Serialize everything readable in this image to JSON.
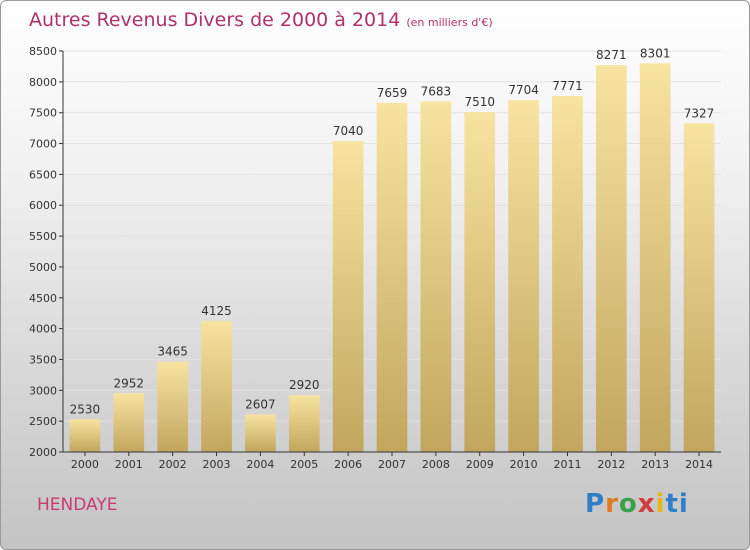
{
  "header": {
    "title": "Autres Revenus Divers de 2000 à 2014",
    "unit": "(en milliers d'€)"
  },
  "footer": {
    "city": "HENDAYE",
    "logo": [
      "P",
      "r",
      "o",
      "x",
      "i",
      "ti"
    ]
  },
  "colors": {
    "title": "#b0306a",
    "bar_light": "#f7e4a0",
    "bar_dark": "#c2a65e",
    "axis": "#333333"
  },
  "chart_data": {
    "type": "bar",
    "title": "Autres Revenus Divers de 2000 à 2014",
    "subtitle": "(en milliers d'€)",
    "categories": [
      "2000",
      "2001",
      "2002",
      "2003",
      "2004",
      "2005",
      "2006",
      "2007",
      "2008",
      "2009",
      "2010",
      "2011",
      "2012",
      "2013",
      "2014"
    ],
    "values": [
      2530,
      2952,
      3465,
      4125,
      2607,
      2920,
      7040,
      7659,
      7683,
      7510,
      7704,
      7771,
      8271,
      8301,
      7327
    ],
    "ylim": [
      2000,
      8500
    ],
    "yticks": [
      2000,
      2500,
      3000,
      3500,
      4000,
      4500,
      5000,
      5500,
      6000,
      6500,
      7000,
      7500,
      8000,
      8500
    ],
    "grid": true,
    "data_labels": true
  }
}
